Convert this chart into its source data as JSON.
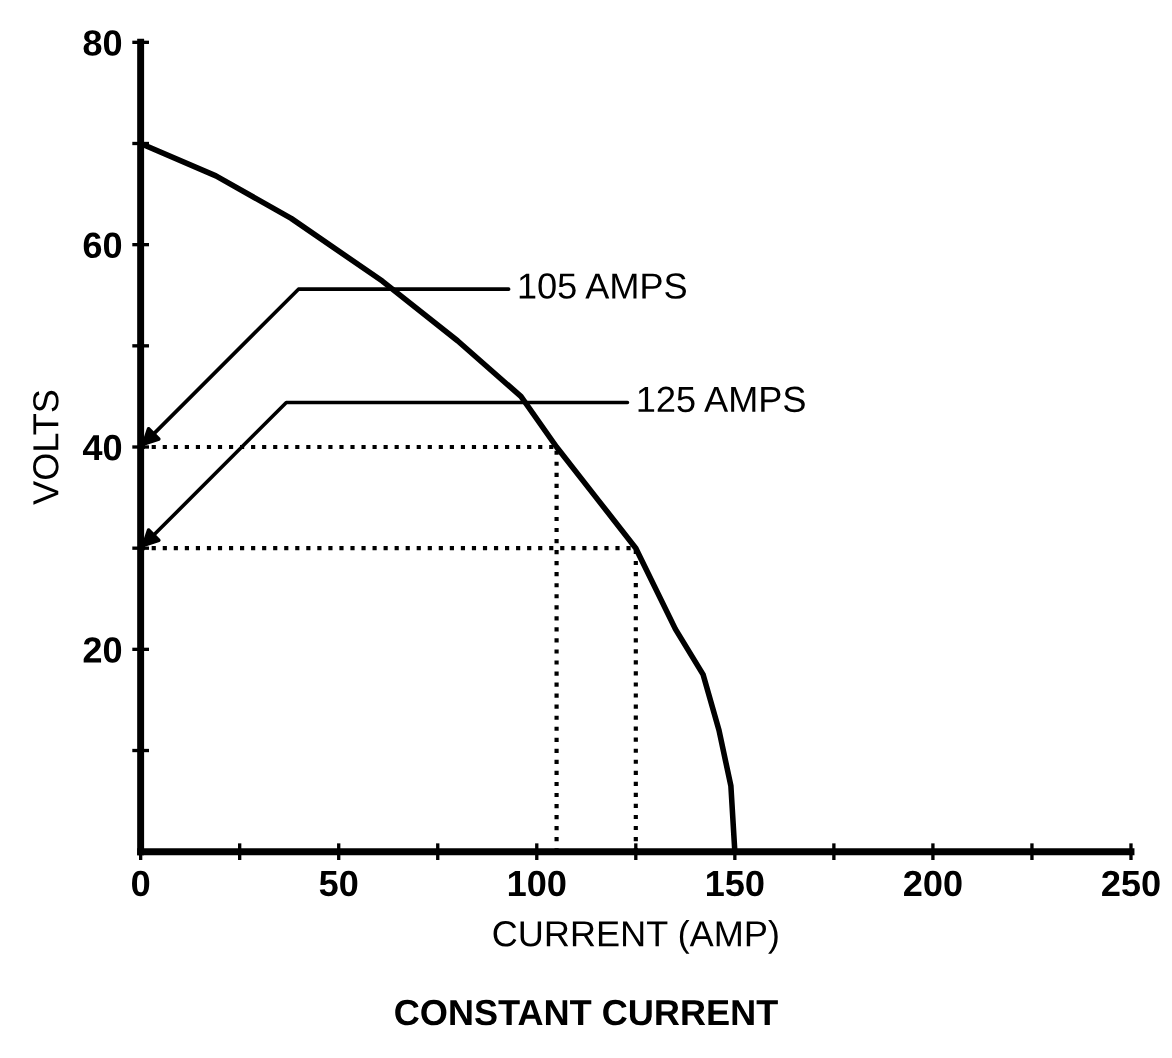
{
  "chart_data": {
    "type": "line",
    "title": "CONSTANT CURRENT",
    "xlabel": "CURRENT (AMP)",
    "ylabel": "VOLTS",
    "xlim": [
      0,
      250
    ],
    "ylim": [
      0,
      80
    ],
    "xticks": [
      0,
      {
        "value": 25,
        "label": null
      },
      50,
      {
        "value": 75,
        "label": null
      },
      100,
      {
        "value": 125,
        "label": null
      },
      150,
      {
        "value": 175,
        "label": null
      },
      200,
      {
        "value": 225,
        "label": null
      },
      250
    ],
    "yticks": [
      {
        "value": 10,
        "label": null
      },
      20,
      {
        "value": 30,
        "label": null
      },
      40,
      {
        "value": 50,
        "label": null
      },
      60,
      {
        "value": 70,
        "label": null
      },
      80
    ],
    "grid": false,
    "marker": "none",
    "series": [
      {
        "color": "#000000",
        "line_style": "solid",
        "x": [
          0,
          19,
          38,
          61,
          80,
          96,
          105,
          115,
          125,
          135,
          142,
          146,
          149,
          150
        ],
        "values": [
          70,
          66.8,
          62.6,
          56.4,
          50.5,
          45,
          40,
          35,
          30,
          22,
          17.5,
          12,
          6.5,
          0
        ]
      },
      {
        "color": "#000000",
        "line_style": "dotted",
        "x": [
          0,
          105,
          105
        ],
        "values": [
          40,
          40,
          0
        ]
      },
      {
        "color": "#000000",
        "line_style": "dotted",
        "x": [
          0,
          125,
          125
        ],
        "values": [
          30,
          30,
          0
        ]
      }
    ],
    "annotations": [
      {
        "text": "105 AMPS",
        "x": 0,
        "y": 40
      },
      {
        "text": "125 AMPS",
        "x": 0,
        "y": 30
      }
    ]
  }
}
